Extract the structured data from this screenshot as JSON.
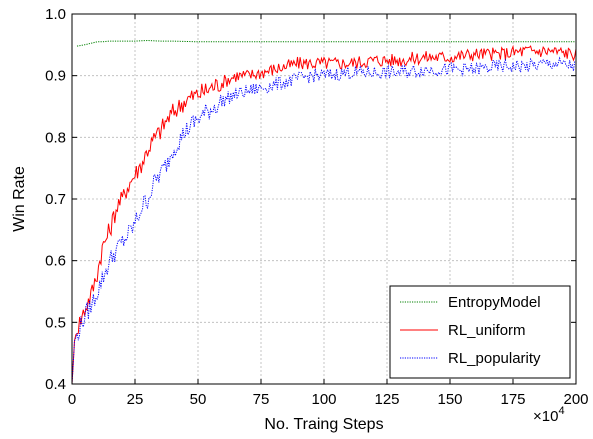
{
  "chart_data": {
    "type": "line",
    "title": "",
    "xlabel": "No. Traing Steps",
    "ylabel": "Win Rate",
    "x_multiplier_base": "×10",
    "x_multiplier_exp": "4",
    "xlim": [
      0,
      200
    ],
    "ylim": [
      0.4,
      1.0
    ],
    "xticks": [
      0,
      25,
      50,
      75,
      100,
      125,
      150,
      175,
      200
    ],
    "xtick_labels": [
      "0",
      "25",
      "50",
      "75",
      "100",
      "125",
      "150",
      "175",
      "200"
    ],
    "yticks": [
      0.4,
      0.5,
      0.6,
      0.7,
      0.8,
      0.9,
      1.0
    ],
    "ytick_labels": [
      "0.4",
      "0.5",
      "0.6",
      "0.7",
      "0.8",
      "0.9",
      "1.0"
    ],
    "grid": true,
    "legend_position": "bottom-right",
    "series": [
      {
        "name": "EntropyModel",
        "color": "#008000",
        "style": "dotted",
        "x": [
          2,
          5,
          8,
          10,
          12,
          15,
          20,
          25,
          30,
          35,
          40,
          50,
          60,
          75,
          100,
          125,
          150,
          175,
          200
        ],
        "y": [
          0.948,
          0.95,
          0.953,
          0.955,
          0.955,
          0.956,
          0.956,
          0.956,
          0.957,
          0.956,
          0.956,
          0.955,
          0.955,
          0.955,
          0.955,
          0.955,
          0.955,
          0.955,
          0.955
        ]
      },
      {
        "name": "RL_uniform",
        "color": "#ff0000",
        "style": "solid",
        "x": [
          0,
          1,
          2,
          3,
          5,
          8,
          10,
          12,
          15,
          18,
          20,
          22,
          25,
          28,
          30,
          33,
          35,
          38,
          40,
          45,
          50,
          55,
          60,
          65,
          70,
          75,
          80,
          85,
          90,
          95,
          100,
          110,
          120,
          130,
          140,
          150,
          160,
          170,
          180,
          190,
          200
        ],
        "y": [
          0.4,
          0.47,
          0.49,
          0.5,
          0.52,
          0.55,
          0.58,
          0.62,
          0.65,
          0.69,
          0.7,
          0.72,
          0.74,
          0.76,
          0.78,
          0.8,
          0.81,
          0.83,
          0.84,
          0.86,
          0.87,
          0.88,
          0.89,
          0.9,
          0.9,
          0.905,
          0.91,
          0.915,
          0.92,
          0.92,
          0.92,
          0.92,
          0.925,
          0.925,
          0.93,
          0.93,
          0.935,
          0.935,
          0.94,
          0.94,
          0.935
        ]
      },
      {
        "name": "RL_popularity",
        "color": "#0000ff",
        "style": "dotted",
        "x": [
          0,
          1,
          2,
          3,
          5,
          8,
          10,
          12,
          15,
          18,
          20,
          22,
          25,
          28,
          30,
          33,
          35,
          38,
          40,
          45,
          50,
          55,
          60,
          65,
          70,
          75,
          80,
          85,
          90,
          95,
          100,
          110,
          120,
          130,
          140,
          150,
          160,
          170,
          180,
          190,
          200
        ],
        "y": [
          0.4,
          0.47,
          0.48,
          0.49,
          0.51,
          0.53,
          0.55,
          0.57,
          0.6,
          0.62,
          0.63,
          0.64,
          0.66,
          0.69,
          0.7,
          0.73,
          0.74,
          0.76,
          0.78,
          0.81,
          0.83,
          0.845,
          0.86,
          0.87,
          0.875,
          0.88,
          0.885,
          0.89,
          0.895,
          0.9,
          0.9,
          0.905,
          0.905,
          0.905,
          0.91,
          0.91,
          0.91,
          0.915,
          0.915,
          0.92,
          0.915
        ]
      }
    ]
  }
}
